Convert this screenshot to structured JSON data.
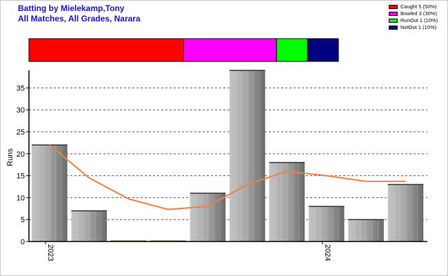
{
  "title_line1": "Batting by Mielekamp,Tony",
  "title_line2": "All Matches, All Grades, Narara",
  "legend": [
    {
      "label": "Caught 5 (50%)",
      "color": "#ff0000"
    },
    {
      "label": "Bowled 3 (30%)",
      "color": "#ff00ff"
    },
    {
      "label": "RunOut 1 (10%)",
      "color": "#00ff00"
    },
    {
      "label": "NotOut 1 (10%)",
      "color": "#000080"
    }
  ],
  "dismissals": [
    {
      "name": "Caught",
      "value": 5,
      "color": "#ff0000"
    },
    {
      "name": "Bowled",
      "value": 3,
      "color": "#ff00ff"
    },
    {
      "name": "RunOut",
      "value": 1,
      "color": "#00ff00"
    },
    {
      "name": "NotOut",
      "value": 1,
      "color": "#000080"
    }
  ],
  "chart_data": {
    "type": "bar",
    "ylabel": "Runs",
    "xlabel": "",
    "ylim": [
      0,
      39
    ],
    "yticks": [
      0,
      5,
      10,
      15,
      20,
      25,
      30,
      35
    ],
    "x_tick_labels": [
      {
        "index": 0,
        "label": "2023"
      },
      {
        "index": 7,
        "label": "2024"
      }
    ],
    "values": [
      22,
      7,
      0,
      0,
      11,
      39,
      18,
      8,
      5,
      13
    ],
    "trend_line": [
      22,
      14.5,
      9.7,
      7.3,
      8,
      13,
      16,
      15,
      13.7,
      13.7
    ],
    "bar_color": "#a0a0a0",
    "line_color": "#f08040",
    "grid": "horizontal dashed"
  }
}
